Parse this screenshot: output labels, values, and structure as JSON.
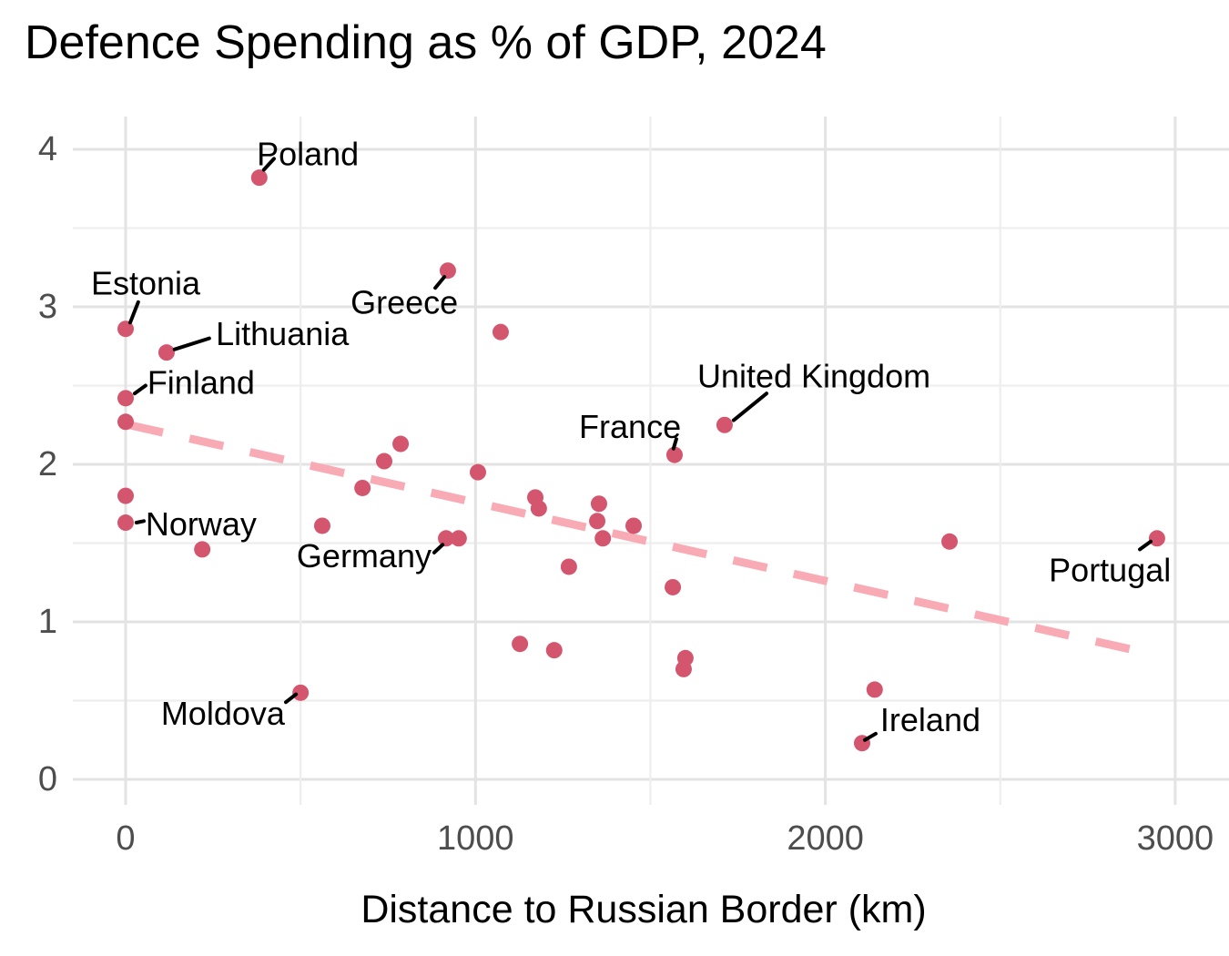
{
  "chart_data": {
    "type": "scatter",
    "title": "Defence Spending as % of GDP, 2024",
    "xlabel": "Distance to Russian Border (km)",
    "ylabel": "",
    "xlim": [
      -150,
      3150
    ],
    "ylim": [
      -0.2,
      4.2
    ],
    "x_ticks": [
      0,
      1000,
      2000,
      3000
    ],
    "y_ticks": [
      0,
      1,
      2,
      3,
      4
    ],
    "x_gridlines": [
      0,
      500,
      1000,
      1500,
      2000,
      2500,
      3000
    ],
    "y_gridlines": [
      0,
      0.5,
      1,
      1.5,
      2,
      2.5,
      3,
      3.5,
      4
    ],
    "grid": true,
    "legend": "none",
    "points": [
      {
        "km": 0,
        "pct": 2.86,
        "label": "Estonia"
      },
      {
        "km": 0,
        "pct": 2.42,
        "label": "Finland"
      },
      {
        "km": 0,
        "pct": 2.27
      },
      {
        "km": 0,
        "pct": 1.8
      },
      {
        "km": 0,
        "pct": 1.63,
        "label": "Norway"
      },
      {
        "km": 117,
        "pct": 2.71,
        "label": "Lithuania"
      },
      {
        "km": 219,
        "pct": 1.46
      },
      {
        "km": 382,
        "pct": 3.82,
        "label": "Poland"
      },
      {
        "km": 500,
        "pct": 0.55,
        "label": "Moldova"
      },
      {
        "km": 562,
        "pct": 1.61
      },
      {
        "km": 677,
        "pct": 1.85
      },
      {
        "km": 739,
        "pct": 2.02
      },
      {
        "km": 786,
        "pct": 2.13
      },
      {
        "km": 916,
        "pct": 1.53,
        "label": "Germany"
      },
      {
        "km": 952,
        "pct": 1.53
      },
      {
        "km": 921,
        "pct": 3.23,
        "label": "Greece"
      },
      {
        "km": 1007,
        "pct": 1.95
      },
      {
        "km": 1072,
        "pct": 2.84
      },
      {
        "km": 1127,
        "pct": 0.86
      },
      {
        "km": 1171,
        "pct": 1.79
      },
      {
        "km": 1181,
        "pct": 1.72
      },
      {
        "km": 1225,
        "pct": 0.82
      },
      {
        "km": 1267,
        "pct": 1.35
      },
      {
        "km": 1348,
        "pct": 1.64
      },
      {
        "km": 1353,
        "pct": 1.75
      },
      {
        "km": 1364,
        "pct": 1.53
      },
      {
        "km": 1452,
        "pct": 1.61
      },
      {
        "km": 1564,
        "pct": 1.22
      },
      {
        "km": 1569,
        "pct": 2.06,
        "label": "France"
      },
      {
        "km": 1595,
        "pct": 0.7
      },
      {
        "km": 1600,
        "pct": 0.77
      },
      {
        "km": 1712,
        "pct": 2.25,
        "label": "United Kingdom"
      },
      {
        "km": 2105,
        "pct": 0.23,
        "label": "Ireland"
      },
      {
        "km": 2141,
        "pct": 0.57
      },
      {
        "km": 2355,
        "pct": 1.51
      },
      {
        "km": 2948,
        "pct": 1.53,
        "label": "Portugal"
      }
    ],
    "trend_line": {
      "style": "dashed",
      "x1": 10,
      "y1": 2.25,
      "x2": 2945,
      "y2": 0.79
    },
    "label_layout": {
      "Estonia": {
        "tx": -99,
        "ty": 3.15,
        "anchor": "start",
        "leader": [
          36,
          3.03,
          13,
          2.9
        ]
      },
      "Finland": {
        "tx": 62,
        "ty": 2.52,
        "anchor": "start",
        "leader": [
          57,
          2.5,
          26,
          2.45
        ]
      },
      "Norway": {
        "tx": 57,
        "ty": 1.62,
        "anchor": "start",
        "leader": [
          52,
          1.64,
          31,
          1.63
        ]
      },
      "Lithuania": {
        "tx": 258,
        "ty": 2.83,
        "anchor": "start",
        "leader": [
          239,
          2.8,
          140,
          2.73
        ]
      },
      "Poland": {
        "tx": 375,
        "ty": 3.97,
        "anchor": "start",
        "leader": [
          424,
          3.94,
          395,
          3.87
        ]
      },
      "Moldova": {
        "tx": 101,
        "ty": 0.42,
        "anchor": "start",
        "leader": [
          458,
          0.49,
          487,
          0.54
        ]
      },
      "Germany": {
        "tx": 489,
        "ty": 1.42,
        "anchor": "start",
        "leader": [
          882,
          1.44,
          906,
          1.49
        ]
      },
      "Greece": {
        "tx": 643,
        "ty": 3.03,
        "anchor": "start",
        "leader": [
          885,
          3.12,
          911,
          3.19
        ]
      },
      "France": {
        "tx": 1296,
        "ty": 2.24,
        "anchor": "start",
        "leader": [
          1574,
          2.16,
          1566,
          2.1
        ]
      },
      "United Kingdom": {
        "tx": 1634,
        "ty": 2.56,
        "anchor": "start",
        "leader": [
          1832,
          2.45,
          1738,
          2.28
        ]
      },
      "Ireland": {
        "tx": 2157,
        "ty": 0.38,
        "anchor": "start",
        "leader": [
          2144,
          0.29,
          2113,
          0.25
        ]
      },
      "Portugal": {
        "tx": 2639,
        "ty": 1.33,
        "anchor": "start",
        "leader": [
          2899,
          1.46,
          2930,
          1.51
        ]
      }
    },
    "colors": {
      "point": "#d4566e",
      "trend": "#f8abb5",
      "grid_major": "#e3e3e3",
      "grid_minor": "#eeeeee",
      "axis_text": "#4d4d4d",
      "label_text": "#000000",
      "leader": "#000000",
      "background": "#ffffff"
    }
  }
}
